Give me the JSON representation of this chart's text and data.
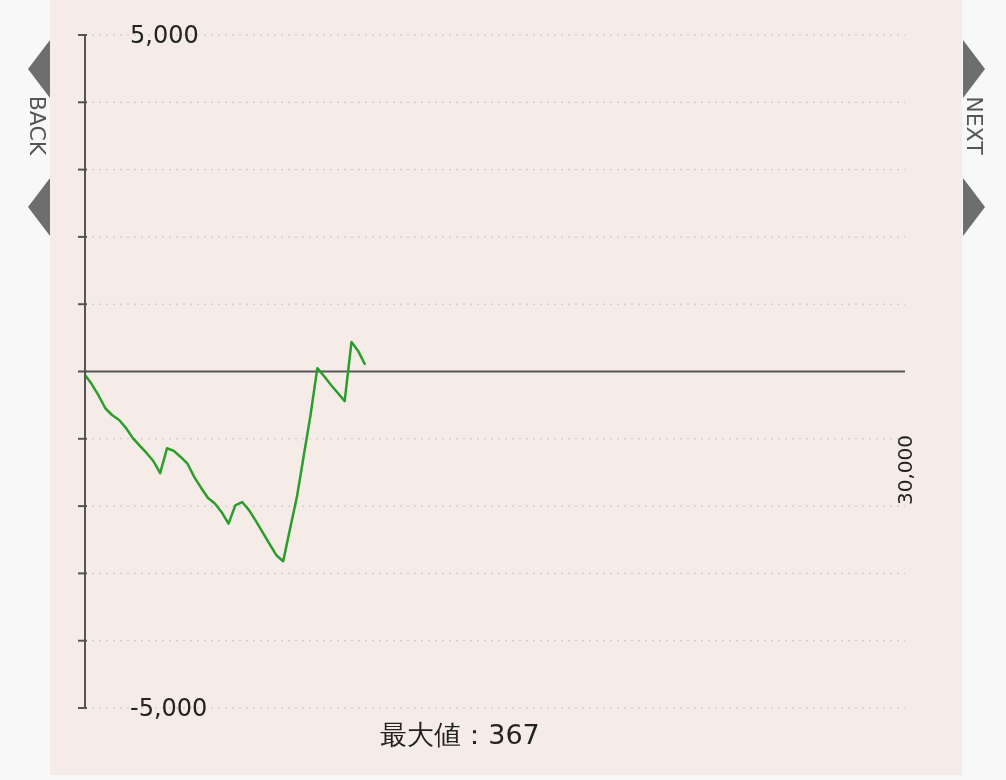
{
  "chart_data": {
    "type": "line",
    "categories": [
      null,
      null,
      null,
      null,
      null,
      null,
      null,
      null,
      null,
      null,
      null,
      null,
      null,
      null,
      null,
      null,
      null,
      null,
      null,
      null,
      null,
      null,
      null,
      null,
      null,
      null,
      null,
      null,
      null,
      null,
      null,
      null,
      null,
      null,
      null,
      null,
      null,
      null,
      null,
      null,
      null,
      null,
      null,
      null,
      null,
      null,
      null,
      null,
      null,
      null,
      null,
      null,
      null,
      null,
      null,
      null,
      null,
      null,
      null,
      null,
      null,
      null,
      null,
      null,
      null,
      null,
      null,
      null,
      null,
      null,
      null,
      null,
      null,
      null,
      null,
      null,
      null,
      null,
      null,
      null,
      null,
      null,
      null,
      null,
      null,
      null,
      null,
      null,
      null,
      null,
      null,
      null,
      null,
      null,
      null,
      null,
      null,
      null,
      null,
      null,
      null,
      null,
      null,
      null,
      null,
      null,
      null,
      null,
      null,
      null,
      null,
      null,
      null,
      null,
      null,
      null,
      null,
      null,
      null,
      null,
      null
    ],
    "series": [
      {
        "color": "#2a9d2a",
        "values": [
          -50,
          -190,
          -360,
          -550,
          -650,
          -720,
          -840,
          -990,
          -1100,
          -1210,
          -1330,
          -1510,
          -1140,
          -1180,
          -1270,
          -1370,
          -1570,
          -1730,
          -1880,
          -1960,
          -2090,
          -2260,
          -1990,
          -1940,
          -2060,
          -2220,
          -2390,
          -2560,
          -2730,
          -2820,
          -2340,
          -1870,
          -1260,
          -650,
          50,
          -70,
          -200,
          -320,
          -440,
          440,
          300,
          100,
          null,
          null,
          null,
          null,
          null,
          null,
          null,
          null,
          null,
          null,
          null,
          null,
          null,
          null,
          null,
          null,
          null,
          null,
          null,
          null,
          null,
          null,
          null,
          null,
          null,
          null,
          null,
          null,
          null,
          null,
          null,
          null,
          null,
          null,
          null,
          null,
          null,
          null,
          null,
          null,
          null,
          null,
          null,
          null,
          null,
          null,
          null,
          null,
          null,
          null,
          null,
          null,
          null,
          null,
          null,
          null,
          null,
          null,
          null,
          null,
          null,
          null,
          null,
          null,
          null,
          null,
          null,
          null,
          null,
          null,
          null,
          null,
          null,
          null,
          null,
          null,
          null,
          null,
          null
        ]
      }
    ],
    "ylim": [
      -5000,
      5000
    ],
    "yticks": [
      {
        "value": -5000,
        "label": "-5,000"
      },
      {
        "value": -4000,
        "label": null
      },
      {
        "value": -3000,
        "label": null
      },
      {
        "value": -2000,
        "label": null
      },
      {
        "value": -1000,
        "label": null
      },
      {
        "value": 0,
        "label": null
      },
      {
        "value": 1000,
        "label": null
      },
      {
        "value": 2000,
        "label": null
      },
      {
        "value": 3000,
        "label": null
      },
      {
        "value": 4000,
        "label": null
      },
      {
        "value": 5000,
        "label": "5,000"
      }
    ],
    "ref_lines": [
      {
        "axis": "y",
        "value": 0,
        "color": "#555555"
      }
    ],
    "grid": "y",
    "marker": "none",
    "line_style": "solid",
    "legend": false,
    "annotations": [
      "最大値：367",
      "BACK",
      "NEXT",
      "30,000"
    ]
  }
}
